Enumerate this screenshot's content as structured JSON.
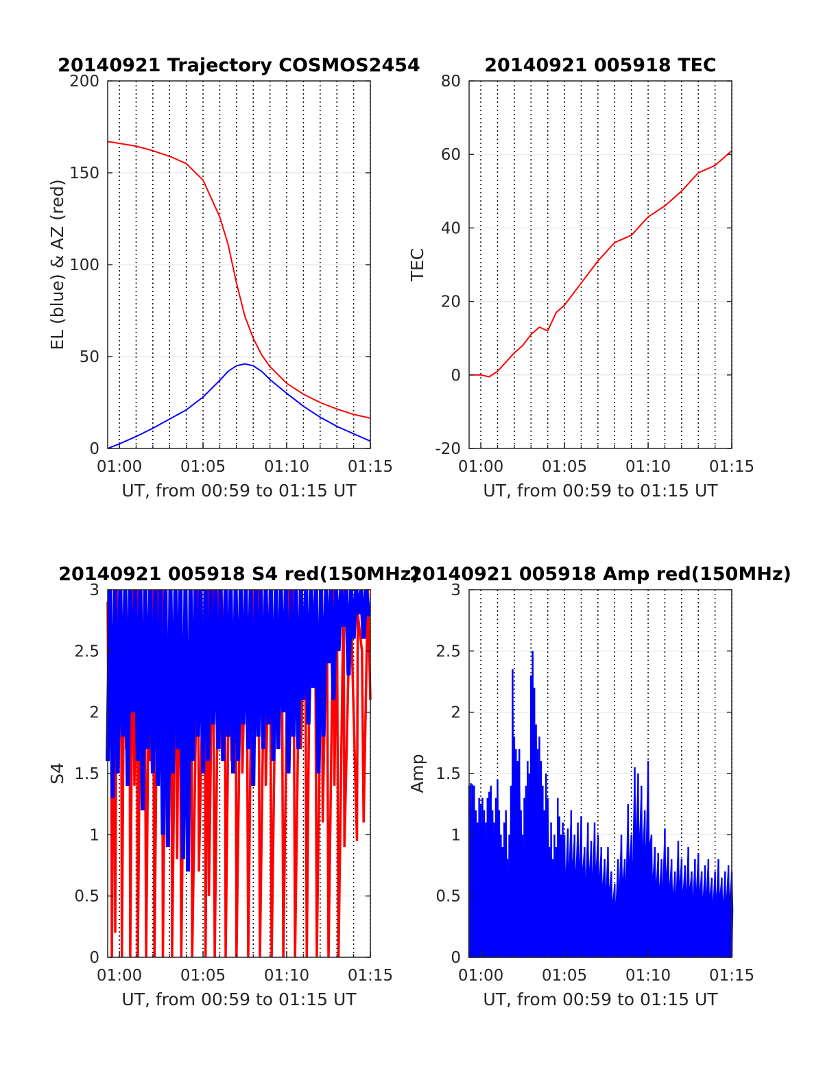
{
  "chart_data": [
    {
      "type": "line",
      "title": "20140921 Trajectory COSMOS2454",
      "xlabel": "UT, from 00:59 to 01:15 UT",
      "ylabel": "EL (blue) & AZ (red)",
      "xlim": [
        "00:59:18",
        "01:15:00"
      ],
      "ylim": [
        0,
        200
      ],
      "x_ticks": [
        "01:00",
        "01:05",
        "01:10",
        "01:15"
      ],
      "y_ticks": [
        "0",
        "50",
        "100",
        "150",
        "200"
      ],
      "grid": true,
      "x_unit": "minutes after 00:59",
      "x": [
        0.3,
        1,
        2,
        3,
        4,
        5,
        6,
        7,
        7.5,
        8,
        8.5,
        9,
        9.5,
        10,
        11,
        12,
        13,
        14,
        15,
        16
      ],
      "series": [
        {
          "name": "EL",
          "color": "#0000ff",
          "values": [
            0,
            2.5,
            6.5,
            11,
            16,
            21,
            28,
            37,
            42,
            45,
            46,
            45,
            42,
            37.5,
            30,
            23,
            17,
            12,
            8,
            4
          ]
        },
        {
          "name": "AZ",
          "color": "#ff0000",
          "values": [
            167,
            166,
            164.5,
            162,
            159,
            155,
            146,
            126,
            111,
            90,
            72,
            60,
            51,
            44.5,
            35.5,
            29.5,
            25,
            21.5,
            18.5,
            16.5
          ]
        }
      ]
    },
    {
      "type": "line",
      "title": "20140921 005918 TEC",
      "xlabel": "UT, from 00:59 to 01:15 UT",
      "ylabel": "TEC",
      "xlim": [
        "00:59:18",
        "01:15:00"
      ],
      "ylim": [
        -20,
        80
      ],
      "x_ticks": [
        "01:00",
        "01:05",
        "01:10",
        "01:15"
      ],
      "y_ticks": [
        "-20",
        "0",
        "20",
        "40",
        "60",
        "80"
      ],
      "grid": true,
      "x_unit": "minutes after 00:59",
      "x": [
        0.3,
        1,
        1.5,
        2,
        3,
        3.5,
        4,
        4.5,
        5,
        5.5,
        6,
        7,
        8,
        9,
        10,
        11,
        12,
        12.5,
        13,
        14,
        15,
        16
      ],
      "series": [
        {
          "name": "TEC",
          "color": "#ff0000",
          "values": [
            0,
            0,
            -0.5,
            1,
            6,
            8,
            11,
            13,
            12,
            17,
            19,
            25,
            31,
            36,
            38,
            43,
            46,
            48,
            50,
            55,
            57,
            61
          ]
        }
      ]
    },
    {
      "type": "line",
      "title": "20140921 005918 S4 red(150MHz)",
      "xlabel": "UT, from 00:59 to 01:15 UT",
      "ylabel": "S4",
      "xlim": [
        "00:59:18",
        "01:15:00"
      ],
      "ylim": [
        0,
        3
      ],
      "x_ticks": [
        "01:00",
        "01:05",
        "01:10",
        "01:15"
      ],
      "y_ticks": [
        "0",
        "0.5",
        "1",
        "1.5",
        "2",
        "2.5",
        "3"
      ],
      "grid": true,
      "x_unit": "minutes after 00:59",
      "series": [
        {
          "name": "red",
          "color": "#ff0000",
          "x": [
            0.3,
            0.35,
            0.5,
            0.55,
            0.7,
            0.75,
            0.85,
            0.9,
            1.1,
            1.15,
            1.3,
            1.4,
            1.6,
            1.65,
            1.8,
            1.9,
            2.05,
            2.1,
            2.3,
            2.35,
            2.5,
            2.6,
            2.8,
            2.85,
            3.0,
            3.1,
            3.3,
            3.35,
            3.55,
            3.6,
            3.8,
            3.9,
            4.1,
            4.15,
            4.4,
            4.45,
            4.6,
            4.7,
            4.95,
            5.0,
            5.3,
            5.35,
            5.7,
            5.75,
            6.1,
            6.15,
            6.3,
            6.35,
            6.6,
            6.7,
            6.95,
            7.0,
            7.3,
            7.35,
            7.6,
            7.7,
            7.95,
            8.0,
            8.3,
            8.35,
            8.6,
            8.7,
            8.95,
            9.0,
            9.3,
            9.4,
            9.7,
            9.75,
            10.0,
            10.1,
            10.4,
            10.45,
            10.7,
            10.8,
            11.1,
            11.15,
            11.4,
            11.5,
            11.8,
            11.85,
            12.1,
            12.2,
            12.4,
            12.5,
            12.7,
            12.8,
            13.1,
            13.15,
            13.4,
            13.5,
            13.8,
            13.85,
            14.0,
            14.1,
            14.4,
            14.45,
            14.8,
            14.85,
            15.2,
            15.25,
            15.5,
            15.6,
            15.85,
            15.9,
            16.0
          ],
          "values": [
            2.9,
            1.7,
            3,
            0,
            3,
            0.2,
            3,
            1.9,
            3,
            0,
            3,
            1.7,
            3,
            0,
            3,
            1.4,
            3,
            0,
            3,
            1.9,
            3,
            0,
            3,
            1.6,
            3,
            0,
            3,
            1.5,
            3,
            0,
            3,
            1.2,
            3,
            0,
            3,
            0.8,
            3,
            0,
            3,
            1.6,
            3,
            0,
            3,
            0.7,
            3,
            0,
            3,
            0.5,
            3,
            0,
            3,
            1.7,
            3,
            0,
            3,
            1.6,
            3,
            0,
            3,
            1.5,
            3,
            0,
            3,
            1.8,
            3,
            0,
            3,
            1.4,
            3,
            0,
            3,
            1.9,
            3,
            0,
            3,
            1.5,
            3,
            0,
            3,
            1.7,
            3,
            0,
            3,
            2.2,
            3,
            0,
            3,
            1.1,
            3,
            0,
            3,
            1.4,
            3,
            0,
            3,
            0.9,
            3,
            2.8,
            0.95,
            2.8,
            2.5,
            1.1,
            3,
            2.7,
            2.1
          ]
        },
        {
          "name": "blue",
          "color": "#0000ff",
          "x": [
            0.3,
            0.45,
            0.6,
            0.75,
            0.9,
            1.05,
            1.2,
            1.35,
            1.5,
            1.65,
            1.8,
            1.95,
            2.1,
            2.25,
            2.4,
            2.55,
            2.7,
            2.85,
            3.0,
            3.15,
            3.3,
            3.45,
            3.6,
            3.75,
            3.9,
            4.05,
            4.2,
            4.35,
            4.5,
            4.65,
            4.8,
            4.95,
            5.1,
            5.25,
            5.4,
            5.55,
            5.7,
            5.85,
            6.0,
            6.15,
            6.3,
            6.45,
            6.6,
            6.75,
            6.9,
            7.05,
            7.2,
            7.35,
            7.5,
            7.65,
            7.8,
            7.95,
            8.1,
            8.25,
            8.4,
            8.55,
            8.7,
            8.85,
            9.0,
            9.15,
            9.3,
            9.45,
            9.6,
            9.75,
            9.9,
            10.05,
            10.2,
            10.35,
            10.5,
            10.65,
            10.8,
            10.95,
            11.1,
            11.25,
            11.4,
            11.55,
            11.7,
            11.85,
            12.0,
            12.15,
            12.3,
            12.45,
            12.6,
            12.75,
            12.9,
            13.05,
            13.2,
            13.35,
            13.5,
            13.65,
            13.8,
            13.95,
            14.1,
            14.25,
            14.4,
            14.55,
            14.7,
            14.85,
            15.0,
            15.15,
            15.3,
            15.45,
            15.6,
            15.75,
            15.9,
            16.0
          ],
          "values": [
            1.6,
            3,
            1.3,
            3,
            1.5,
            3,
            1.8,
            3,
            1.4,
            3,
            2.0,
            3,
            1.6,
            3,
            1.2,
            3,
            1.7,
            3,
            1.5,
            3,
            1.4,
            3,
            1.0,
            3,
            0.9,
            3,
            1.5,
            3,
            1.7,
            3,
            0.8,
            3,
            0.7,
            3,
            1.6,
            3,
            1.8,
            3,
            1.5,
            3,
            1.6,
            3,
            1.9,
            3,
            1.7,
            3,
            1.6,
            3,
            1.8,
            3,
            1.5,
            3,
            1.6,
            3,
            1.9,
            3,
            1.7,
            3,
            1.4,
            3,
            1.8,
            3,
            1.7,
            3,
            1.9,
            3,
            1.6,
            3,
            1.7,
            3,
            2.0,
            3,
            1.5,
            3,
            1.8,
            3,
            1.7,
            3,
            2.1,
            3,
            1.9,
            3,
            2.2,
            3,
            1.5,
            3,
            1.8,
            3,
            2.4,
            3,
            2.1,
            3,
            2.5,
            3,
            2.7,
            3,
            2.3,
            3,
            2.6,
            3,
            2.8,
            3,
            2.6,
            3,
            2.8,
            2.8
          ]
        }
      ]
    },
    {
      "type": "line",
      "title": "20140921 005918 Amp red(150MHz)",
      "xlabel": "UT, from 00:59 to 01:15 UT",
      "ylabel": "Amp",
      "xlim": [
        "00:59:18",
        "01:15:00"
      ],
      "ylim": [
        0,
        3
      ],
      "x_ticks": [
        "01:00",
        "01:05",
        "01:10",
        "01:15"
      ],
      "y_ticks": [
        "0",
        "0.5",
        "1",
        "1.5",
        "2",
        "2.5",
        "3"
      ],
      "grid": true,
      "x_unit": "minutes after 00:59",
      "series": [
        {
          "name": "Amp",
          "color": "#0000ff",
          "x": [
            0.3,
            0.4,
            0.5,
            0.6,
            0.7,
            0.8,
            0.9,
            1.0,
            1.1,
            1.2,
            1.3,
            1.4,
            1.5,
            1.6,
            1.7,
            1.8,
            1.9,
            2.0,
            2.1,
            2.2,
            2.3,
            2.4,
            2.5,
            2.6,
            2.7,
            2.8,
            2.9,
            3.0,
            3.1,
            3.2,
            3.3,
            3.4,
            3.5,
            3.6,
            3.7,
            3.8,
            3.9,
            4.0,
            4.1,
            4.2,
            4.3,
            4.4,
            4.5,
            4.6,
            4.7,
            4.8,
            4.9,
            5.0,
            5.1,
            5.2,
            5.3,
            5.4,
            5.5,
            5.6,
            5.7,
            5.8,
            5.9,
            6.0,
            6.2,
            6.4,
            6.6,
            6.8,
            7.0,
            7.2,
            7.4,
            7.6,
            7.8,
            8.0,
            8.2,
            8.4,
            8.6,
            8.8,
            9.0,
            9.2,
            9.4,
            9.6,
            9.8,
            10.0,
            10.2,
            10.4,
            10.6,
            10.8,
            11.0,
            11.2,
            11.4,
            11.6,
            11.8,
            12.0,
            12.2,
            12.4,
            12.6,
            12.8,
            13.0,
            13.2,
            13.4,
            13.6,
            13.8,
            14.0,
            14.2,
            14.4,
            14.6,
            14.8,
            15.0,
            15.2,
            15.4,
            15.6,
            15.8,
            16.0
          ],
          "values": [
            1.4,
            1.42,
            1.41,
            1.4,
            1.2,
            1.1,
            1.3,
            1.25,
            1.3,
            1.2,
            1.1,
            1.3,
            1.35,
            1.4,
            1.2,
            1.1,
            1.3,
            1.45,
            1.2,
            1.0,
            0.9,
            1.1,
            1.2,
            0.8,
            1.0,
            1.4,
            2.35,
            1.8,
            1.7,
            1.6,
            1.7,
            1.2,
            1.0,
            1.3,
            1.4,
            1.6,
            1.5,
            2.3,
            2.5,
            2.2,
            1.9,
            1.7,
            1.8,
            1.6,
            1.4,
            1.2,
            1.5,
            1.3,
            0.9,
            1.1,
            0.8,
            1.0,
            0.9,
            1.3,
            1.15,
            1.0,
            1.1,
            1.0,
            1.05,
            1.2,
            1.0,
            1.1,
            1.15,
            0.9,
            1.1,
            0.95,
            1.1,
            1.0,
            0.9,
            0.8,
            0.9,
            0.7,
            0.6,
            0.8,
            1.0,
            0.8,
            1.25,
            1.0,
            1.55,
            1.5,
            1.4,
            1.2,
            1.6,
            1.0,
            0.9,
            0.85,
            0.8,
            1.05,
            0.9,
            0.8,
            0.7,
            0.95,
            0.8,
            0.75,
            0.9,
            0.7,
            0.8,
            0.85,
            0.7,
            0.75,
            0.8,
            0.65,
            0.7,
            0.8,
            0.65,
            0.7,
            0.75,
            0.7
          ]
        }
      ]
    }
  ]
}
